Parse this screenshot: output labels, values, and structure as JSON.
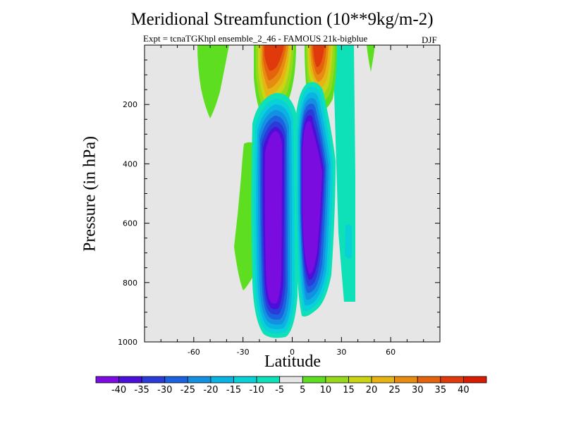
{
  "chart_data": {
    "type": "heatmap",
    "title": "Meridional Streamfunction (10**9kg/m-2)",
    "subtitle": "Expt = tcnaTGKhpl ensemble_2_46 - FAMOUS 21k-bigblue",
    "season": "DJF",
    "xlabel": "Latitude",
    "ylabel": "Pressure (in hPa)",
    "xlim": [
      -90,
      90
    ],
    "ylim": [
      1000,
      0
    ],
    "x_ticks": [
      -60,
      -30,
      0,
      30,
      60
    ],
    "x_tick_labels": [
      "-60",
      "-30",
      "0",
      "30",
      "60"
    ],
    "y_ticks": [
      200,
      400,
      600,
      800,
      1000
    ],
    "y_tick_labels": [
      "200",
      "400",
      "600",
      "800",
      "1000"
    ],
    "grid": false,
    "background_color": "#e6e6e6",
    "colorbar": {
      "labels": [
        "-40",
        "-35",
        "-30",
        "-25",
        "-20",
        "-15",
        "-10",
        "-5",
        "5",
        "10",
        "15",
        "20",
        "25",
        "30",
        "35",
        "40"
      ],
      "colors": [
        "#7b0ce0",
        "#4a0fd8",
        "#2b3bd8",
        "#1c62e0",
        "#1490e0",
        "#0ab4e2",
        "#0ad0d8",
        "#0ee0b8",
        "#e6e6e6",
        "#5ede20",
        "#96d81a",
        "#c8d414",
        "#e6b414",
        "#e68c10",
        "#e4640e",
        "#e03a0c",
        "#d81c04"
      ]
    },
    "features": [
      {
        "name": "southern deep negative cell",
        "lat_center": -10,
        "p_top": 180,
        "p_bottom": 990,
        "min_value": -40
      },
      {
        "name": "northern negative cell",
        "lat_center": 13,
        "p_top": 150,
        "p_bottom": 950,
        "min_value": -40
      },
      {
        "name": "upper positive cell south",
        "lat_center": -8,
        "p_top": 10,
        "p_bottom": 180,
        "max_value": 40
      },
      {
        "name": "upper positive cell north",
        "lat_center": 13,
        "p_top": 10,
        "p_bottom": 120,
        "max_value": 40
      },
      {
        "name": "weak positive band SH midlatitudes",
        "lat_center": -52,
        "p_top": 10,
        "p_bottom": 240,
        "max_value": 10
      },
      {
        "name": "weak positive band SH subtropics",
        "lat_center": -27,
        "p_top": 330,
        "p_bottom": 830,
        "max_value": 10
      },
      {
        "name": "weak negative NH subtropics",
        "lat_center": 30,
        "p_top": 10,
        "p_bottom": 860,
        "min_value": -10
      }
    ]
  }
}
